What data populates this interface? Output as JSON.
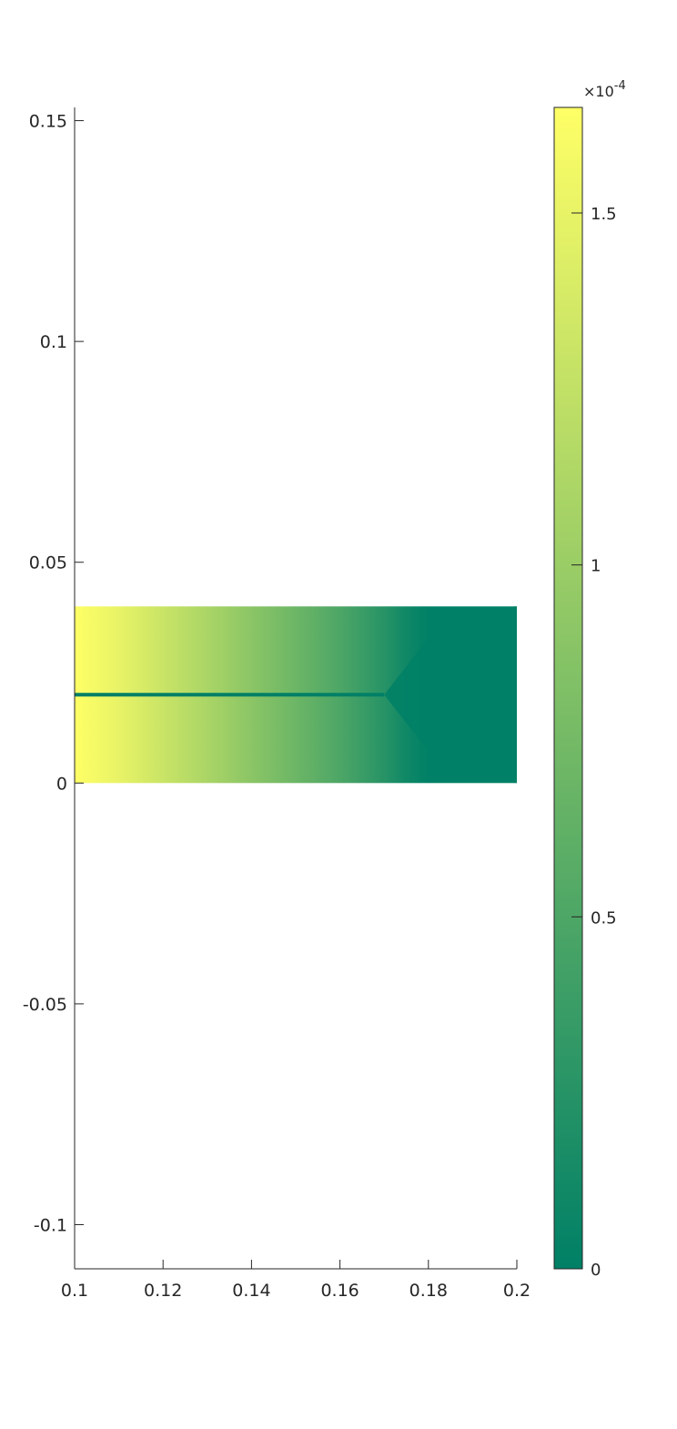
{
  "chart_data": {
    "type": "heatmap",
    "title": "",
    "xlabel": "",
    "ylabel": "",
    "xlim": [
      0.1,
      0.2
    ],
    "ylim": [
      -0.11,
      0.153
    ],
    "x_ticks": [
      0.1,
      0.12,
      0.14,
      0.16,
      0.18,
      0.2
    ],
    "x_tick_labels": [
      "0.1",
      "0.12",
      "0.14",
      "0.16",
      "0.18",
      "0.2"
    ],
    "y_ticks": [
      -0.1,
      -0.05,
      0,
      0.05,
      0.1,
      0.15
    ],
    "y_tick_labels": [
      "-0.1",
      "-0.05",
      "0",
      "0.05",
      "0.1",
      "0.15"
    ],
    "grid": false,
    "colormap": "summer",
    "colormap_low": "#008066",
    "colormap_high": "#ffff66",
    "domain": {
      "x": [
        0.1,
        0.2
      ],
      "y": [
        0,
        0.04
      ]
    },
    "field": {
      "x": [
        0.1,
        0.11,
        0.12,
        0.13,
        0.14,
        0.15,
        0.16,
        0.17,
        0.175,
        0.18,
        0.19,
        0.2
      ],
      "value": [
        0.000165,
        0.00015,
        0.00013,
        0.00011,
        9e-05,
        7e-05,
        5e-05,
        2.5e-05,
        1e-05,
        0,
        0,
        0
      ]
    },
    "crack": {
      "y": 0.02,
      "x_start": 0.1,
      "x_tip": 0.17,
      "value": 0
    },
    "colorbar": {
      "limits": [
        0,
        0.000165
      ],
      "ticks": [
        0,
        0.5,
        1,
        1.5
      ],
      "tick_labels": [
        "0",
        "0.5",
        "1",
        "1.5"
      ],
      "exponent_base": "×10",
      "exponent_power": "-4",
      "location": "right"
    }
  }
}
